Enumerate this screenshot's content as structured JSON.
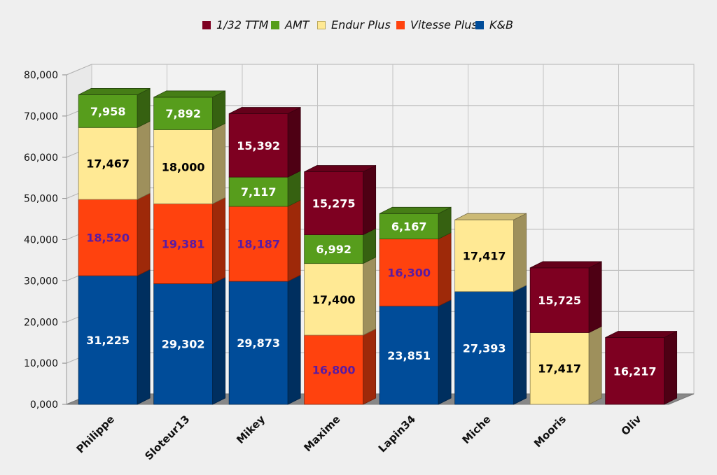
{
  "chart_data": {
    "type": "bar",
    "stacked": true,
    "three_d": true,
    "categories": [
      "Philippe",
      "Sloteur13",
      "Mikey",
      "Maxime",
      "Lapin34",
      "Miche",
      "Mooris",
      "Oliv"
    ],
    "series": [
      {
        "name": "K&B",
        "color": "#004c99",
        "values": [
          31225,
          29302,
          29873,
          0,
          23851,
          27393,
          0,
          0
        ],
        "labels": [
          "31,225",
          "29,302",
          "29,873",
          "",
          "23,851",
          "27,393",
          "",
          ""
        ]
      },
      {
        "name": "Vitesse Plus",
        "color": "#ff420e",
        "values": [
          18520,
          19381,
          18187,
          16800,
          16300,
          0,
          0,
          0
        ],
        "labels": [
          "18,520",
          "19,381",
          "18,187",
          "16,800",
          "16,300",
          "",
          "",
          ""
        ]
      },
      {
        "name": "Endur Plus",
        "color": "#ffe994",
        "values": [
          17467,
          18000,
          0,
          17400,
          0,
          17417,
          17417,
          0
        ],
        "labels": [
          "17,467",
          "18,000",
          "",
          "17,400",
          "",
          "17,417",
          "17,417",
          ""
        ]
      },
      {
        "name": "AMT",
        "color": "#579d1c",
        "values": [
          7958,
          7892,
          7117,
          6992,
          6167,
          0,
          0,
          0
        ],
        "labels": [
          "7,958",
          "7,892",
          "7,117",
          "6,992",
          "6,167",
          "",
          "",
          ""
        ]
      },
      {
        "name": "1/32 TTM",
        "color": "#7e0021",
        "values": [
          0,
          0,
          15392,
          15275,
          0,
          0,
          15725,
          16217
        ],
        "labels": [
          "",
          "",
          "15,392",
          "15,275",
          "",
          "",
          "15,725",
          "16,217"
        ]
      }
    ],
    "label_colors": {
      "K&B": "#ffffff",
      "Vitesse Plus": "#5b1ba3",
      "Endur Plus": "#000000",
      "AMT": "#ffffff",
      "1/32 TTM": "#ffffff"
    },
    "legend_order": [
      "1/32 TTM",
      "AMT",
      "Endur Plus",
      "Vitesse Plus",
      "K&B"
    ],
    "y_ticks": [
      "0,000",
      "10,000",
      "20,000",
      "30,000",
      "40,000",
      "50,000",
      "60,000",
      "70,000",
      "80,000"
    ],
    "ylim": [
      0,
      80000
    ],
    "grid": true,
    "legend_position": "top"
  }
}
